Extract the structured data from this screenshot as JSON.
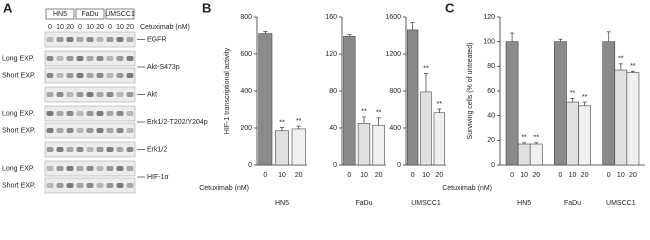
{
  "blot": {
    "label": "A",
    "cell_lines": [
      "HN5",
      "FaDu",
      "UMSCC1"
    ],
    "lanes": [
      "0",
      "10",
      "20"
    ],
    "treatment": "Cetuximab (nM)",
    "rows": [
      {
        "target": "EGFR"
      },
      {
        "target": "Akt-S473p",
        "exposures": [
          "Long EXP.",
          "Short EXP."
        ]
      },
      {
        "target": "Akt"
      },
      {
        "target": "Erk1/2-T202/Y204p",
        "exposures": [
          "Long EXP.",
          "Short EXP."
        ]
      },
      {
        "target": "Erk1/2"
      },
      {
        "target": "HIF-1α",
        "exposures": [
          "Long EXP.",
          "Short EXP."
        ]
      }
    ]
  },
  "chart_data": [
    {
      "type": "bar",
      "panel": "B",
      "title": "HN5",
      "ylabel": "HIF-1 transcriptional activity",
      "xlabel": "Cetuximab (nM)",
      "categories": [
        "0",
        "10",
        "20"
      ],
      "values": [
        710,
        185,
        195
      ],
      "errors": [
        12,
        18,
        15
      ],
      "significance": [
        null,
        "**",
        "**"
      ],
      "colors": [
        "#8a8a8a",
        "#e0e0e0",
        "#f0f0f0"
      ],
      "ylim": [
        0,
        800
      ],
      "yticks": [
        0,
        200,
        400,
        600,
        800
      ]
    },
    {
      "type": "bar",
      "title": "FaDu",
      "categories": [
        "0",
        "10",
        "20"
      ],
      "values": [
        139,
        45,
        43
      ],
      "errors": [
        2,
        7,
        8
      ],
      "significance": [
        null,
        "**",
        "**"
      ],
      "colors": [
        "#8a8a8a",
        "#e0e0e0",
        "#f0f0f0"
      ],
      "ylim": [
        0,
        160
      ],
      "yticks": [
        0,
        40,
        80,
        120,
        160
      ]
    },
    {
      "type": "bar",
      "title": "UMSCC1",
      "categories": [
        "0",
        "10",
        "20"
      ],
      "values": [
        1460,
        790,
        565
      ],
      "errors": [
        80,
        200,
        40
      ],
      "significance": [
        null,
        "**",
        "**"
      ],
      "colors": [
        "#8a8a8a",
        "#e0e0e0",
        "#f0f0f0"
      ],
      "ylim": [
        0,
        1600
      ],
      "yticks": [
        0,
        400,
        800,
        1200,
        1600
      ]
    },
    {
      "type": "grouped_bar",
      "panel": "C",
      "ylabel": "Surviving cells (% of untreated)",
      "xlabel": "Cetuximab (nM)",
      "categories": [
        "HN5",
        "FaDu",
        "UMSCC1"
      ],
      "series": [
        {
          "name": "0",
          "color": "#8a8a8a",
          "values": [
            100,
            100,
            100
          ],
          "errors": [
            7,
            2,
            8
          ],
          "significance": [
            null,
            null,
            null
          ]
        },
        {
          "name": "10",
          "color": "#e0e0e0",
          "values": [
            17,
            51,
            77
          ],
          "errors": [
            1,
            3,
            5
          ],
          "significance": [
            "**",
            "**",
            "**"
          ]
        },
        {
          "name": "20",
          "color": "#f0f0f0",
          "values": [
            17,
            48,
            75
          ],
          "errors": [
            1,
            3,
            1
          ],
          "significance": [
            "**",
            "**",
            "**"
          ]
        }
      ],
      "ylim": [
        0,
        120
      ],
      "yticks": [
        0,
        20,
        40,
        60,
        80,
        100,
        120
      ]
    }
  ]
}
